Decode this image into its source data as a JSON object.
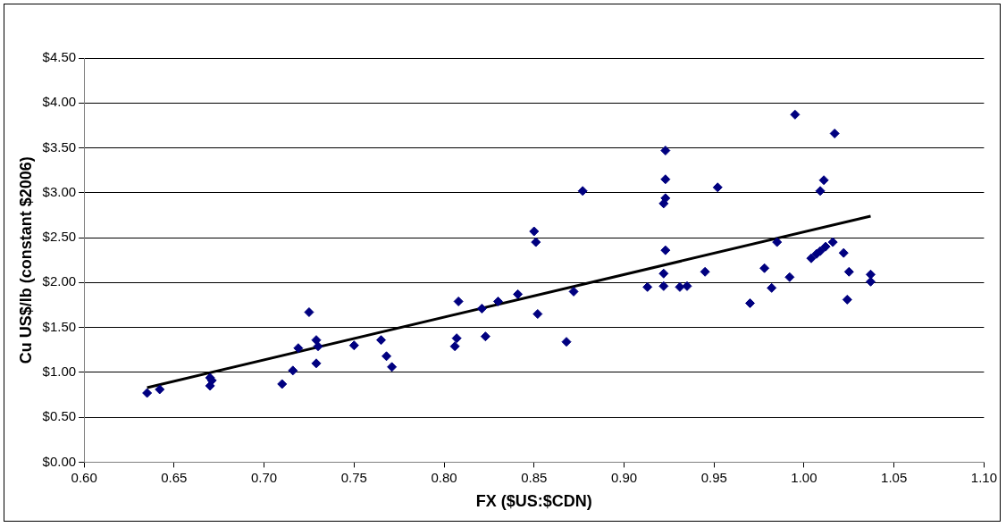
{
  "chart_data": {
    "type": "scatter",
    "xlabel": "FX ($US:$CDN)",
    "ylabel": "Cu US$/lb (constant $2006)",
    "xlim": [
      0.6,
      1.1
    ],
    "ylim": [
      0,
      4.5
    ],
    "xticks": [
      {
        "value": 0.6,
        "label": "0.60"
      },
      {
        "value": 0.65,
        "label": "0.65"
      },
      {
        "value": 0.7,
        "label": "0.70"
      },
      {
        "value": 0.75,
        "label": "0.75"
      },
      {
        "value": 0.8,
        "label": "0.80"
      },
      {
        "value": 0.85,
        "label": "0.85"
      },
      {
        "value": 0.9,
        "label": "0.90"
      },
      {
        "value": 0.95,
        "label": "0.95"
      },
      {
        "value": 1.0,
        "label": "1.00"
      },
      {
        "value": 1.05,
        "label": "1.05"
      },
      {
        "value": 1.1,
        "label": "1.10"
      }
    ],
    "yticks": [
      {
        "value": 0,
        "label": "$0.00"
      },
      {
        "value": 0.5,
        "label": "$0.50"
      },
      {
        "value": 1,
        "label": "$1.00"
      },
      {
        "value": 1.5,
        "label": "$1.50"
      },
      {
        "value": 2,
        "label": "$2.00"
      },
      {
        "value": 2.5,
        "label": "$2.50"
      },
      {
        "value": 3,
        "label": "$3.00"
      },
      {
        "value": 3.5,
        "label": "$3.50"
      },
      {
        "value": 4,
        "label": "$4.00"
      },
      {
        "value": 4.5,
        "label": "$4.50"
      }
    ],
    "grid": "y",
    "legend": false,
    "series": [
      {
        "marker": "diamond",
        "color": "#000080",
        "x": [
          0.635,
          0.642,
          0.67,
          0.671,
          0.67,
          0.71,
          0.716,
          0.719,
          0.725,
          0.729,
          0.73,
          0.729,
          0.75,
          0.765,
          0.768,
          0.771,
          0.808,
          0.807,
          0.806,
          0.821,
          0.823,
          0.83,
          0.841,
          0.85,
          0.851,
          0.852,
          0.868,
          0.872,
          0.877,
          0.913,
          0.922,
          0.922,
          0.923,
          0.922,
          0.923,
          0.923,
          0.923,
          0.931,
          0.935,
          0.945,
          0.952,
          0.97,
          0.978,
          0.982,
          0.985,
          0.992,
          0.995,
          1.004,
          1.007,
          1.009,
          1.012,
          1.009,
          1.011,
          1.016,
          1.017,
          1.022,
          1.025,
          1.024,
          1.037,
          1.037
        ],
        "values": [
          0.77,
          0.81,
          0.94,
          0.91,
          0.85,
          0.87,
          1.02,
          1.27,
          1.67,
          1.36,
          1.29,
          1.1,
          1.3,
          1.36,
          1.18,
          1.06,
          1.79,
          1.38,
          1.29,
          1.71,
          1.4,
          1.79,
          1.87,
          2.57,
          2.45,
          1.65,
          1.34,
          1.9,
          3.02,
          1.95,
          1.96,
          2.1,
          2.36,
          2.88,
          2.94,
          3.15,
          3.47,
          1.95,
          1.96,
          2.12,
          3.06,
          1.77,
          2.16,
          1.94,
          2.45,
          2.06,
          3.87,
          2.27,
          2.32,
          2.35,
          2.4,
          3.02,
          3.14,
          2.45,
          3.66,
          2.33,
          2.12,
          1.81,
          2.09,
          2.01
        ]
      },
      {
        "type": "line",
        "marker": "none",
        "line_style": "solid",
        "color": "#000000",
        "x": [
          0.635,
          1.037
        ],
        "values": [
          0.83,
          2.74
        ]
      }
    ]
  }
}
